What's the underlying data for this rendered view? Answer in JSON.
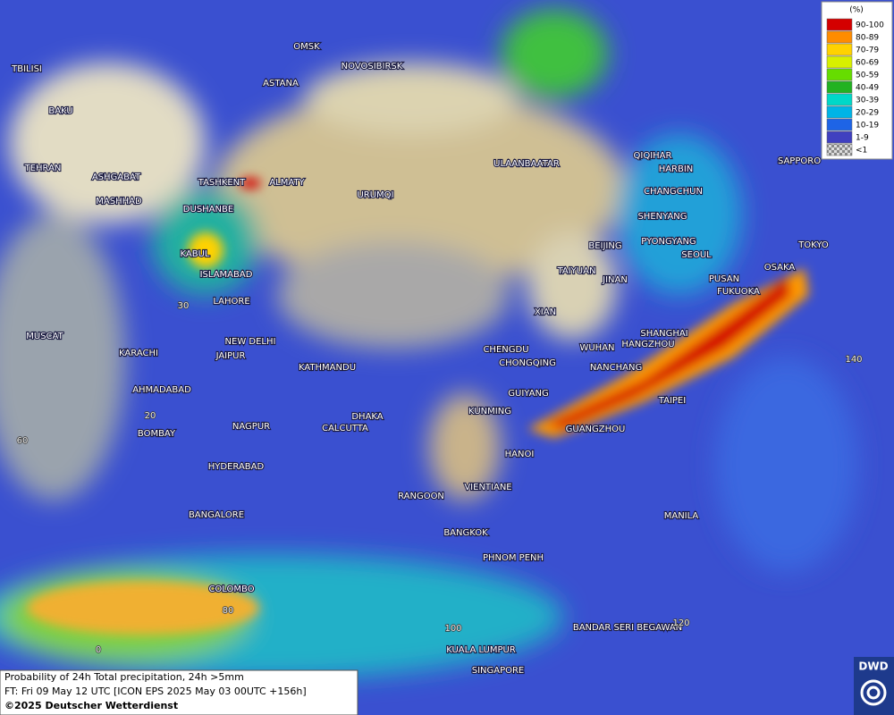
{
  "legend": {
    "title": "(%)",
    "items": [
      {
        "label": "90-100",
        "color": "#d40000"
      },
      {
        "label": "80-89",
        "color": "#ff8c00"
      },
      {
        "label": "70-79",
        "color": "#ffd200"
      },
      {
        "label": "60-69",
        "color": "#d8f000"
      },
      {
        "label": "50-59",
        "color": "#66dd00"
      },
      {
        "label": "40-49",
        "color": "#22b222"
      },
      {
        "label": "30-39",
        "color": "#00d8c8"
      },
      {
        "label": "20-29",
        "color": "#00b4e6"
      },
      {
        "label": "10-19",
        "color": "#1e64e6"
      },
      {
        "label": "1-9",
        "color": "#4040c0"
      },
      {
        "label": "<1",
        "color": "#b0b0b0"
      }
    ]
  },
  "cities": [
    "OMSK",
    "NOVOSIBIRSK",
    "ASTANA",
    "TBILISI",
    "BAKU",
    "TEHRAN",
    "ASHGABAT",
    "MASHHAD",
    "TASHKENT",
    "ALMATY",
    "DUSHANBE",
    "URUMQI",
    "ULAANBAATAR",
    "QIQIHAR",
    "HARBIN",
    "CHANGCHUN",
    "SHENYANG",
    "BEIJING",
    "PYONGYANG",
    "SEOUL",
    "TOKYO",
    "SAPPORO",
    "KABUL",
    "ISLAMABAD",
    "TAIYUAN",
    "JINAN",
    "PUSAN",
    "OSAKA",
    "FUKUOKA",
    "LAHORE",
    "XIAN",
    "SHANGHAI",
    "WUHAN",
    "HANGZHOU",
    "NEW DELHI",
    "CHENGDU",
    "MUSCAT",
    "KARACHI",
    "JAIPUR",
    "KATHMANDU",
    "CHONGQING",
    "NANCHANG",
    "TAIPEI",
    "GUIYANG",
    "AHMADABAD",
    "DHAKA",
    "KUNMING",
    "CALCUTTA",
    "NAGPUR",
    "GUANGZHOU",
    "BOMBAY",
    "HANOI",
    "HYDERABAD",
    "RANGOON",
    "VIENTIANE",
    "MANILA",
    "BANGALORE",
    "BANGKOK",
    "PHNOM PENH",
    "COLOMBO",
    "BANDAR SERI BEGAWAN",
    "KUALA LUMPUR",
    "SINGAPORE"
  ],
  "grid_labels": [
    "30",
    "20",
    "60",
    "80",
    "0",
    "100",
    "120",
    "140"
  ],
  "footer": {
    "line1": "Probability of 24h Total precipitation, 24h >5mm",
    "line2": "FT: Fri 09 May 12 UTC [ICON EPS 2025 May 03 00UTC +156h]",
    "line3": "©2025 Deutscher Wetterdienst"
  },
  "logo": "DWD"
}
